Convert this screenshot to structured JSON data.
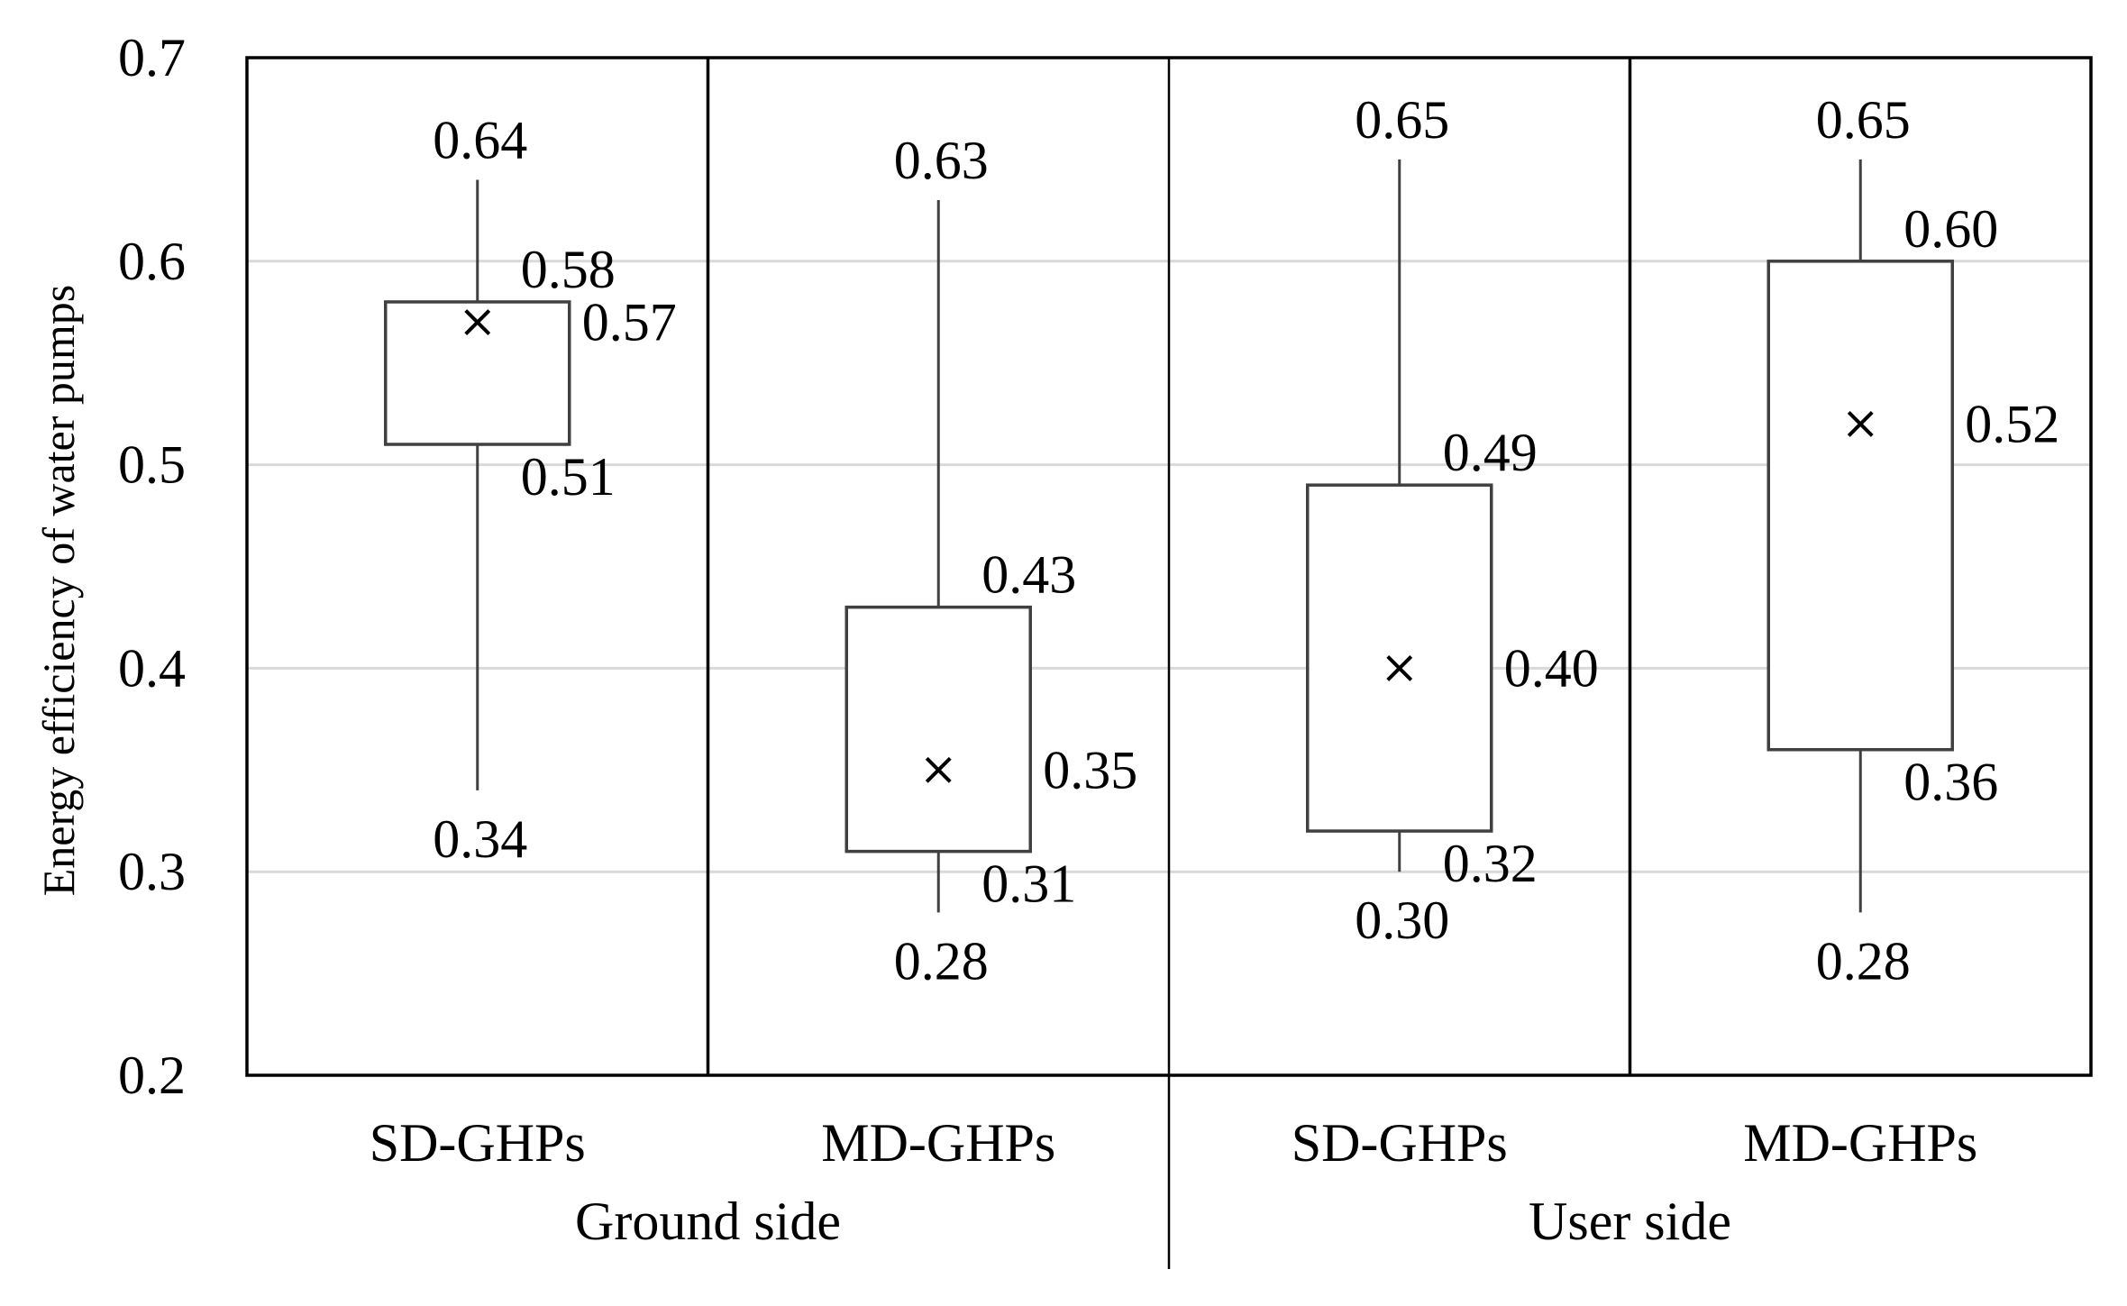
{
  "chart_data": {
    "type": "box",
    "ylabel": "Energy efficiency of water pumps",
    "ylim": [
      0.2,
      0.7
    ],
    "yticks": [
      "0.2",
      "0.3",
      "0.4",
      "0.5",
      "0.6",
      "0.7"
    ],
    "grid": true,
    "groups": [
      "Ground side",
      "User side"
    ],
    "boxes": [
      {
        "group": "Ground side",
        "category": "SD-GHPs",
        "min": 0.34,
        "q1": 0.51,
        "q3": 0.58,
        "max": 0.64,
        "mean": 0.57,
        "labels": {
          "min": "0.34",
          "q1": "0.51",
          "q3": "0.58",
          "max": "0.64",
          "mean": "0.57"
        }
      },
      {
        "group": "Ground side",
        "category": "MD-GHPs",
        "min": 0.28,
        "q1": 0.31,
        "q3": 0.43,
        "max": 0.63,
        "mean": 0.35,
        "labels": {
          "min": "0.28",
          "q1": "0.31",
          "q3": "0.43",
          "max": "0.63",
          "mean": "0.35"
        }
      },
      {
        "group": "User side",
        "category": "SD-GHPs",
        "min": 0.3,
        "q1": 0.32,
        "q3": 0.49,
        "max": 0.65,
        "mean": 0.4,
        "labels": {
          "min": "0.30",
          "q1": "0.32",
          "q3": "0.49",
          "max": "0.65",
          "mean": "0.40"
        }
      },
      {
        "group": "User side",
        "category": "MD-GHPs",
        "min": 0.28,
        "q1": 0.36,
        "q3": 0.6,
        "max": 0.65,
        "mean": 0.52,
        "labels": {
          "min": "0.28",
          "q1": "0.36",
          "q3": "0.60",
          "max": "0.65",
          "mean": "0.52"
        }
      }
    ]
  },
  "colors": {
    "axis": "#000000",
    "grid": "#d9d9d9",
    "box_edge": "#404040",
    "whisker": "#404040"
  }
}
